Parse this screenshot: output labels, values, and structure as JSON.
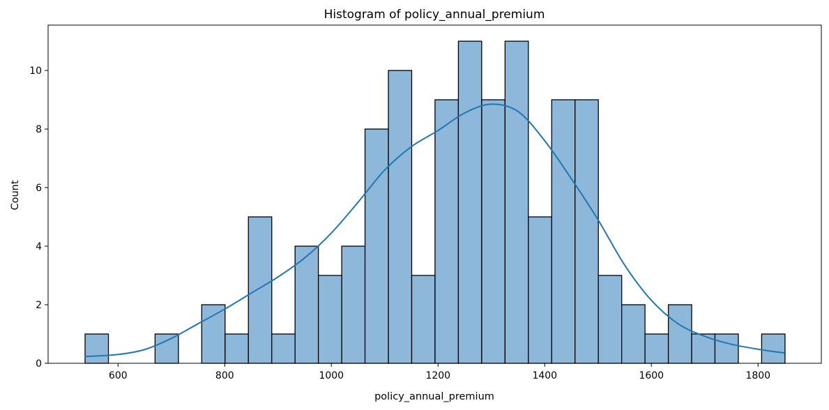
{
  "chart_data": {
    "type": "bar",
    "subtype": "histogram-with-kde",
    "title": "Histogram of policy_annual_premium",
    "xlabel": "policy_annual_premium",
    "ylabel": "Count",
    "xlim": [
      468.9,
      1918.6
    ],
    "ylim": [
      0,
      11.55
    ],
    "xticks": [
      600,
      800,
      1000,
      1200,
      1400,
      1600,
      1800
    ],
    "yticks": [
      0,
      2,
      4,
      6,
      8,
      10
    ],
    "grid": false,
    "legend": "none",
    "bin_edges": [
      538.2,
      582.0,
      625.7,
      669.4,
      713.2,
      756.9,
      800.7,
      844.4,
      888.2,
      931.9,
      975.6,
      1019.4,
      1063.1,
      1106.9,
      1150.6,
      1194.3,
      1238.1,
      1281.8,
      1325.6,
      1369.3,
      1413.1,
      1456.8,
      1500.5,
      1544.3,
      1588.0,
      1631.8,
      1675.5,
      1719.2,
      1763.0,
      1806.7,
      1850.5
    ],
    "counts": [
      1,
      0,
      0,
      1,
      0,
      2,
      1,
      5,
      1,
      4,
      3,
      4,
      8,
      10,
      3,
      9,
      11,
      9,
      11,
      5,
      9,
      9,
      3,
      2,
      1,
      2,
      1,
      1,
      0,
      1
    ],
    "kde": {
      "x": [
        538,
        600,
        650,
        700,
        750,
        800,
        850,
        900,
        950,
        1000,
        1050,
        1100,
        1150,
        1200,
        1250,
        1300,
        1350,
        1400,
        1450,
        1500,
        1550,
        1600,
        1650,
        1700,
        1750,
        1800,
        1850
      ],
      "y": [
        0.23,
        0.3,
        0.47,
        0.85,
        1.35,
        1.85,
        2.4,
        2.95,
        3.6,
        4.45,
        5.5,
        6.6,
        7.4,
        7.95,
        8.55,
        8.85,
        8.6,
        7.6,
        6.3,
        4.9,
        3.35,
        2.15,
        1.35,
        0.92,
        0.65,
        0.48,
        0.35
      ]
    },
    "colors": {
      "bar_fill": "#8db8da",
      "bar_edge": "#000000",
      "kde_line": "#1f77b4"
    }
  }
}
